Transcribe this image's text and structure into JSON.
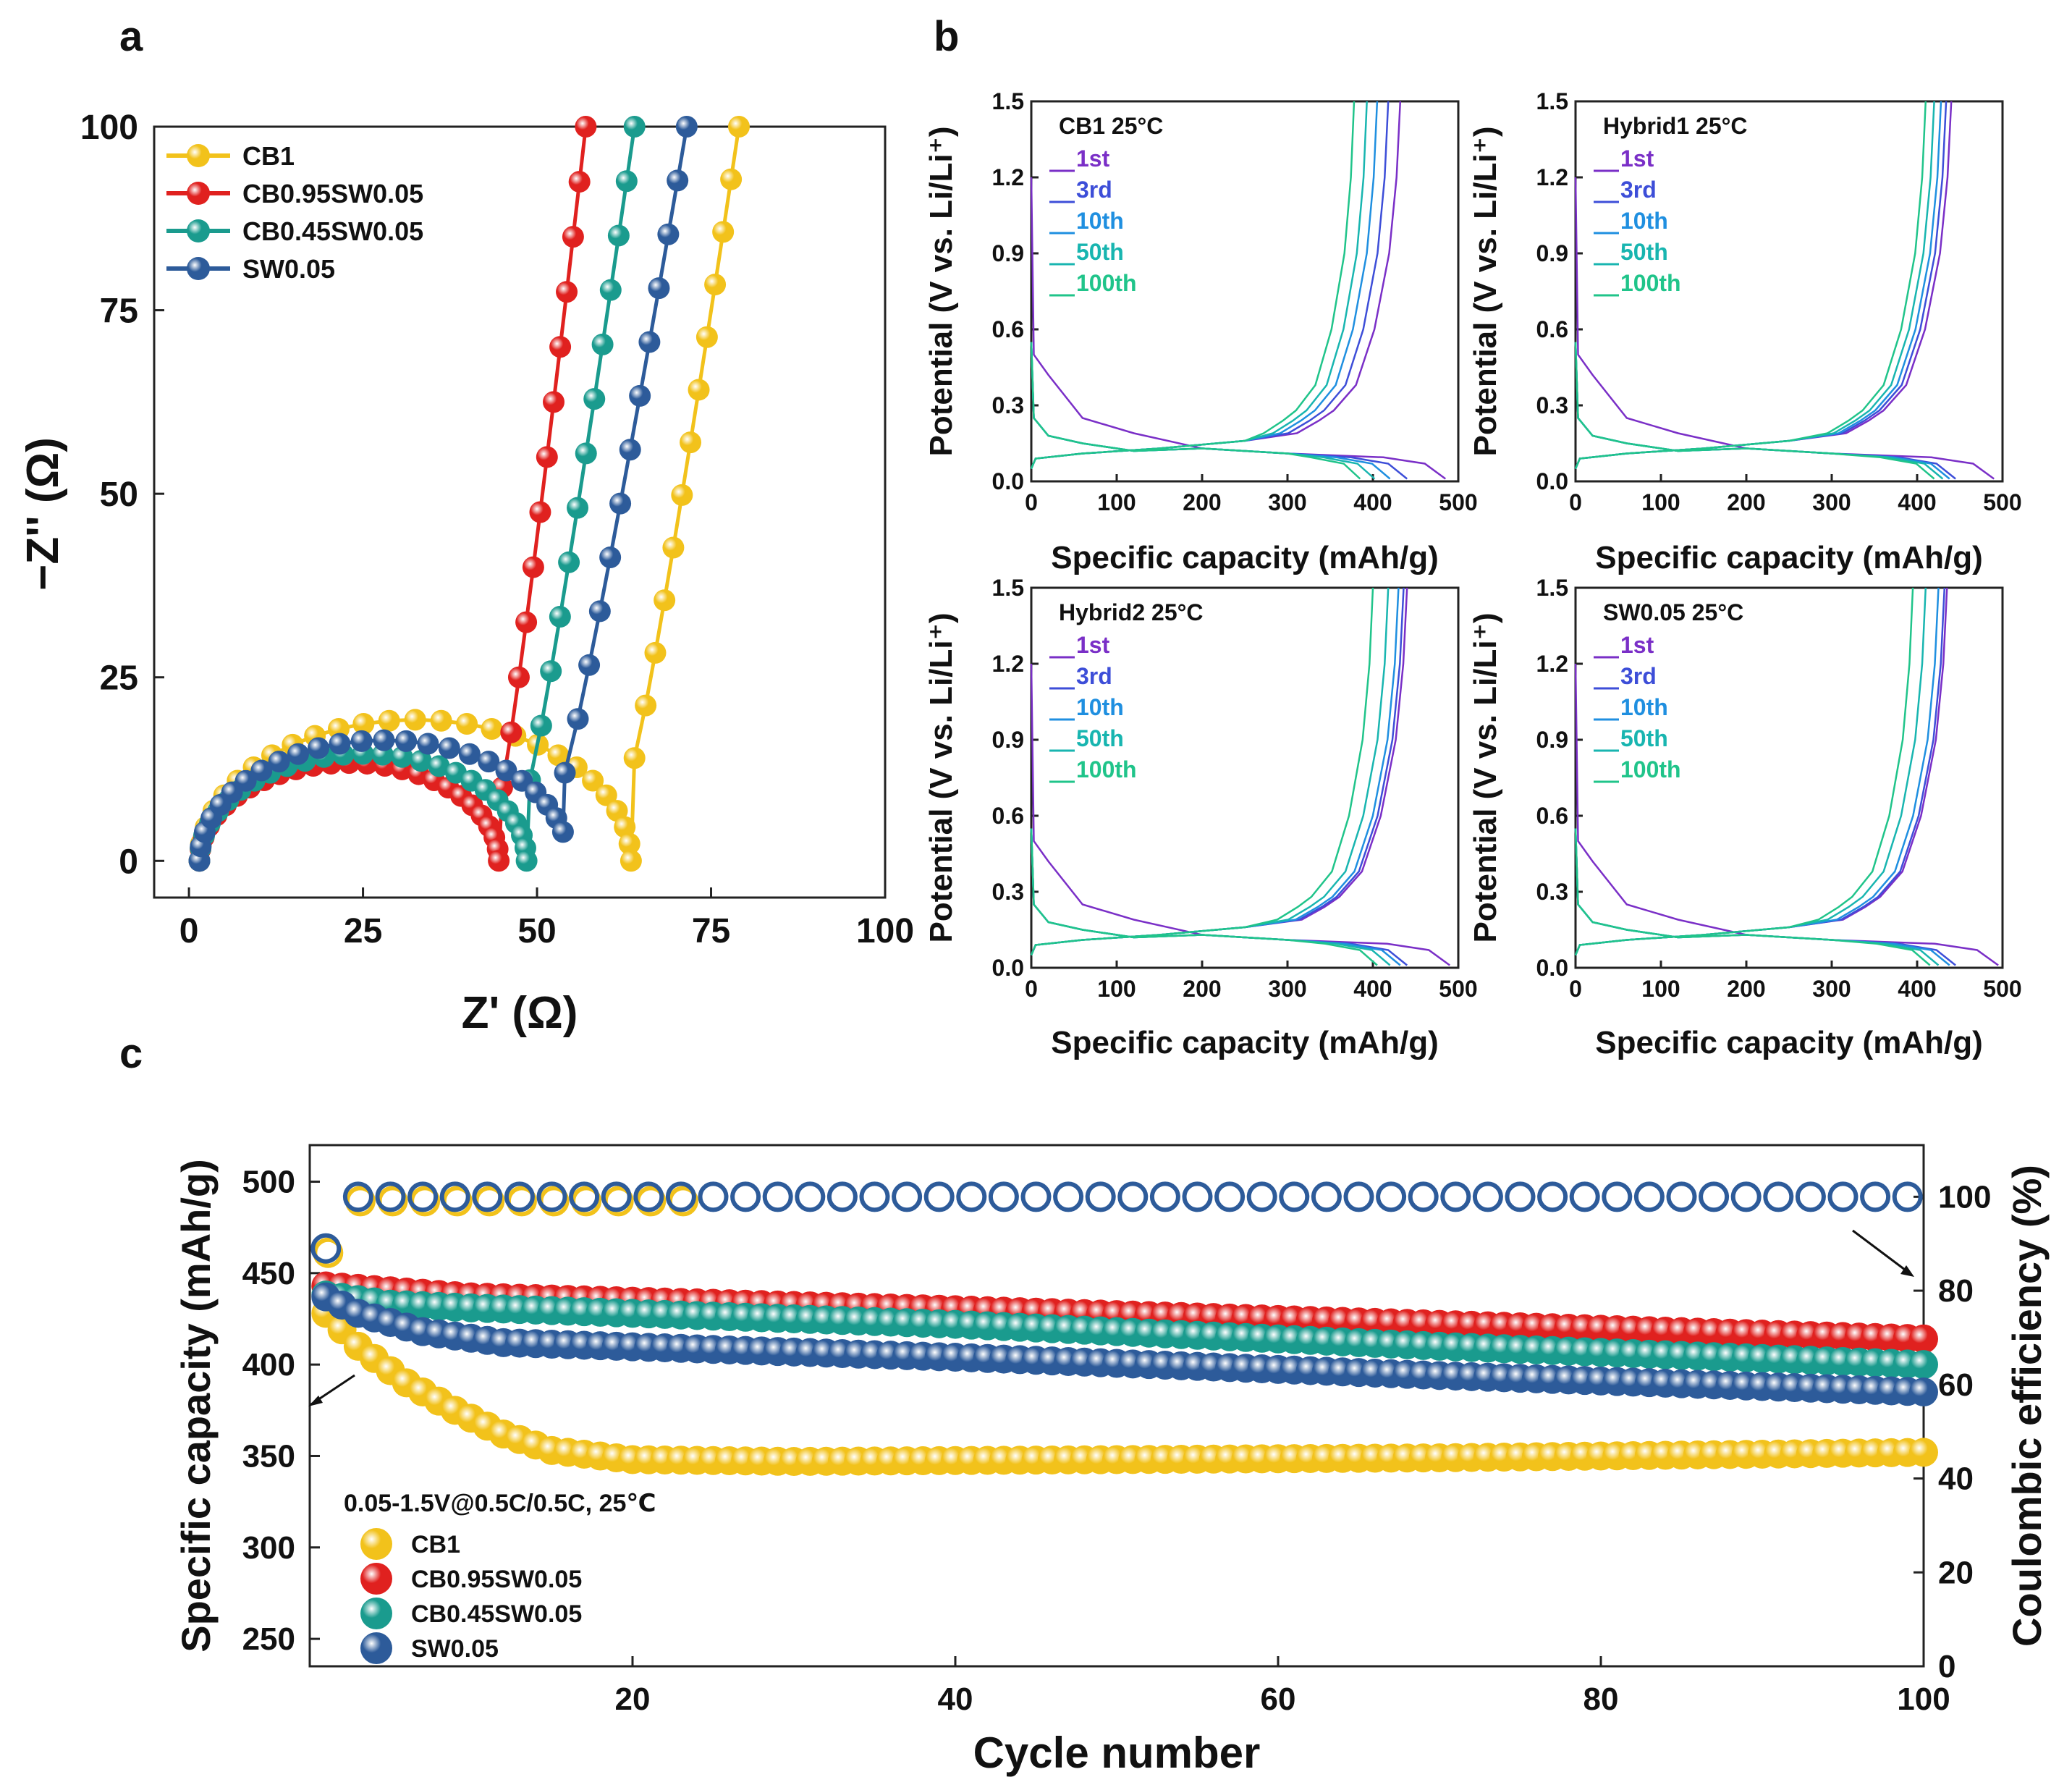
{
  "panels": {
    "a": {
      "letter": "a",
      "chart_data": {
        "type": "scatter",
        "xlabel": "Z' (Ω)",
        "ylabel": "−Z'' (Ω)",
        "xlim": [
          -5,
          100
        ],
        "ylim": [
          -5,
          100
        ],
        "xticks": [
          0,
          25,
          50,
          75,
          100
        ],
        "yticks": [
          0,
          25,
          50,
          75,
          100
        ],
        "legend_position": "top-left",
        "series": [
          {
            "name": "CB1",
            "color": "#f2c21b",
            "r0": 1.5,
            "semicircle_diameter": 62,
            "tail_start": [
              64,
              14
            ],
            "tail_end": [
              79,
              100
            ]
          },
          {
            "name": "CB0.95SW0.05",
            "color": "#e0211f",
            "r0": 1.5,
            "semicircle_diameter": 43,
            "tail_start": [
              45,
              10
            ],
            "tail_end": [
              57,
              100
            ]
          },
          {
            "name": "CB0.45SW0.05",
            "color": "#1a9b8e",
            "r0": 1.5,
            "semicircle_diameter": 47,
            "tail_start": [
              49,
              11
            ],
            "tail_end": [
              64,
              100
            ]
          },
          {
            "name": "SW0.05",
            "color": "#2d5b9a",
            "r0": 1.5,
            "semicircle_diameter": 53,
            "tail_start": [
              54,
              12
            ],
            "tail_end": [
              71.5,
              100
            ]
          }
        ]
      }
    },
    "b": {
      "letter": "b",
      "chart_data": [
        {
          "type": "line",
          "title": "CB1 25°C",
          "xlabel": "Specific capacity (mAh/g)",
          "ylabel": "Potential (V vs. Li/Li⁺)",
          "xlim": [
            0,
            500
          ],
          "ylim": [
            0,
            1.5
          ],
          "xticks": [
            0,
            100,
            200,
            300,
            400,
            500
          ],
          "yticks": [
            0.0,
            0.3,
            0.6,
            0.9,
            1.2,
            1.5
          ],
          "series": [
            {
              "name": "1st",
              "color": "#7a2fc7",
              "discharge_end": 485,
              "charge_end": 432
            },
            {
              "name": "3rd",
              "color": "#3d4ed8",
              "discharge_end": 440,
              "charge_end": 418
            },
            {
              "name": "10th",
              "color": "#1f8fe0",
              "discharge_end": 420,
              "charge_end": 405
            },
            {
              "name": "50th",
              "color": "#18b5b0",
              "discharge_end": 402,
              "charge_end": 393
            },
            {
              "name": "100th",
              "color": "#20c48a",
              "discharge_end": 385,
              "charge_end": 378
            }
          ]
        },
        {
          "type": "line",
          "title": "Hybrid1 25°C",
          "xlabel": "Specific capacity (mAh/g)",
          "ylabel": "Potential (V vs. Li/Li⁺)",
          "xlim": [
            0,
            500
          ],
          "ylim": [
            0,
            1.5
          ],
          "xticks": [
            0,
            100,
            200,
            300,
            400,
            500
          ],
          "yticks": [
            0.0,
            0.3,
            0.6,
            0.9,
            1.2,
            1.5
          ],
          "series": [
            {
              "name": "1st",
              "color": "#7a2fc7",
              "discharge_end": 490,
              "charge_end": 440
            },
            {
              "name": "3rd",
              "color": "#3d4ed8",
              "discharge_end": 445,
              "charge_end": 434
            },
            {
              "name": "10th",
              "color": "#1f8fe0",
              "discharge_end": 438,
              "charge_end": 428
            },
            {
              "name": "50th",
              "color": "#18b5b0",
              "discharge_end": 430,
              "charge_end": 420
            },
            {
              "name": "100th",
              "color": "#20c48a",
              "discharge_end": 420,
              "charge_end": 410
            }
          ]
        },
        {
          "type": "line",
          "title": "Hybrid2 25°C",
          "xlabel": "Specific capacity (mAh/g)",
          "ylabel": "Potential (V vs. Li/Li⁺)",
          "xlim": [
            0,
            500
          ],
          "ylim": [
            0,
            1.5
          ],
          "xticks": [
            0,
            100,
            200,
            300,
            400,
            500
          ],
          "yticks": [
            0.0,
            0.3,
            0.6,
            0.9,
            1.2,
            1.5
          ],
          "series": [
            {
              "name": "1st",
              "color": "#7a2fc7",
              "discharge_end": 490,
              "charge_end": 440
            },
            {
              "name": "3rd",
              "color": "#3d4ed8",
              "discharge_end": 440,
              "charge_end": 436
            },
            {
              "name": "10th",
              "color": "#1f8fe0",
              "discharge_end": 432,
              "charge_end": 430
            },
            {
              "name": "50th",
              "color": "#18b5b0",
              "discharge_end": 420,
              "charge_end": 418
            },
            {
              "name": "100th",
              "color": "#20c48a",
              "discharge_end": 405,
              "charge_end": 400
            }
          ]
        },
        {
          "type": "line",
          "title": "SW0.05 25°C",
          "xlabel": "Specific capacity (mAh/g)",
          "ylabel": "Potential (V vs. Li/Li⁺)",
          "xlim": [
            0,
            500
          ],
          "ylim": [
            0,
            1.5
          ],
          "xticks": [
            0,
            100,
            200,
            300,
            400,
            500
          ],
          "yticks": [
            0.0,
            0.3,
            0.6,
            0.9,
            1.2,
            1.5
          ],
          "series": [
            {
              "name": "1st",
              "color": "#7a2fc7",
              "discharge_end": 495,
              "charge_end": 435
            },
            {
              "name": "3rd",
              "color": "#3d4ed8",
              "discharge_end": 445,
              "charge_end": 432
            },
            {
              "name": "10th",
              "color": "#1f8fe0",
              "discharge_end": 438,
              "charge_end": 425
            },
            {
              "name": "50th",
              "color": "#18b5b0",
              "discharge_end": 425,
              "charge_end": 410
            },
            {
              "name": "100th",
              "color": "#20c48a",
              "discharge_end": 415,
              "charge_end": 395
            }
          ]
        }
      ]
    },
    "c": {
      "letter": "c",
      "chart_data": {
        "type": "scatter",
        "xlabel": "Cycle number",
        "ylabel": "Specific capacity (mAh/g)",
        "y2label": "Coulombic efficiency (%)",
        "xlim": [
          0,
          100
        ],
        "ylim": [
          235,
          520
        ],
        "y2lim": [
          0,
          111
        ],
        "xticks": [
          20,
          40,
          60,
          80,
          100
        ],
        "yticks": [
          250,
          300,
          350,
          400,
          450,
          500
        ],
        "y2ticks": [
          0,
          20,
          40,
          60,
          80,
          100
        ],
        "annotation": "0.05-1.5V@0.5C/0.5C, 25℃",
        "legend_position": "bottom-left",
        "series": [
          {
            "name": "CB1",
            "color": "#f2c21b",
            "capacity_points": [
              [
                1,
                428
              ],
              [
                3,
                410
              ],
              [
                6,
                390
              ],
              [
                9,
                375
              ],
              [
                12,
                362
              ],
              [
                15,
                353
              ],
              [
                20,
                348
              ],
              [
                30,
                347
              ],
              [
                50,
                348
              ],
              [
                70,
                349
              ],
              [
                100,
                352
              ]
            ]
          },
          {
            "name": "CB0.95SW0.05",
            "color": "#e0211f",
            "capacity_points": [
              [
                1,
                443
              ],
              [
                10,
                437
              ],
              [
                40,
                430
              ],
              [
                70,
                422
              ],
              [
                100,
                414
              ]
            ]
          },
          {
            "name": "CB0.45SW0.05",
            "color": "#1a9b8e",
            "capacity_points": [
              [
                1,
                438
              ],
              [
                5,
                433
              ],
              [
                10,
                431
              ],
              [
                40,
                422
              ],
              [
                70,
                410
              ],
              [
                100,
                400
              ]
            ]
          },
          {
            "name": "SW0.05",
            "color": "#2d5b9a",
            "capacity_points": [
              [
                1,
                437
              ],
              [
                3,
                428
              ],
              [
                7,
                418
              ],
              [
                12,
                412
              ],
              [
                40,
                404
              ],
              [
                70,
                394
              ],
              [
                100,
                385
              ]
            ]
          }
        ],
        "efficiency": {
          "first_cycle": 89,
          "steady": 100,
          "color_front": "#2d5b9a",
          "color_back": "#f2c21b"
        }
      }
    }
  }
}
